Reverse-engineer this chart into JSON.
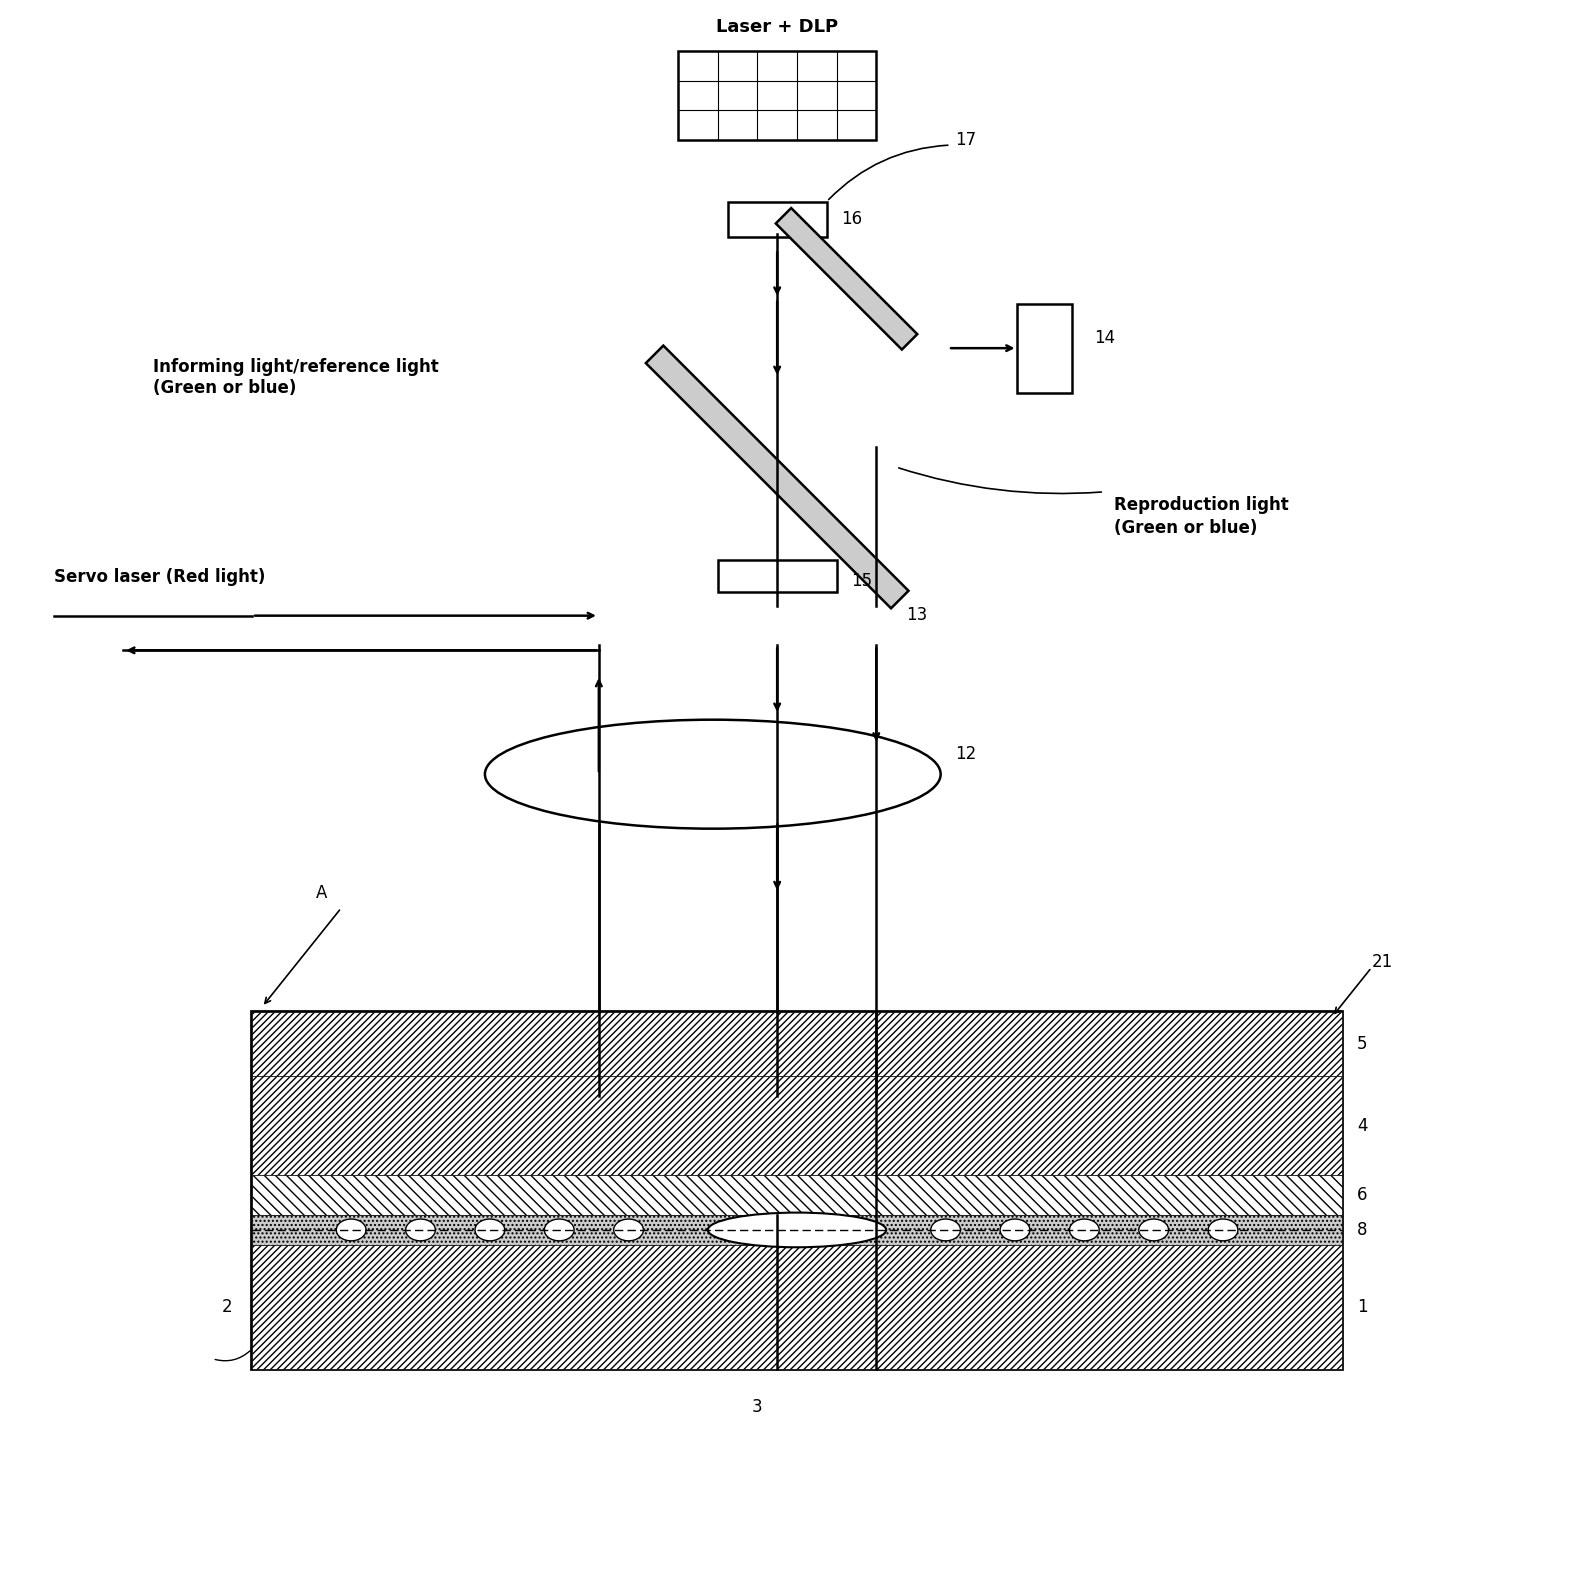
{
  "fig_width": 15.94,
  "fig_height": 15.88,
  "bg_color": "#ffffff",
  "line_color": "#000000",
  "hatch_color": "#000000",
  "labels": {
    "laser_dlp": "Laser + DLP",
    "informing_light": "Informing light/reference light\n(Green or blue)",
    "servo_laser": "Servo laser (Red light)",
    "repro_light": "Reproduction light\n(Green or blue)",
    "num_16": "16",
    "num_17": "17",
    "num_14": "14",
    "num_15": "15",
    "num_13": "13",
    "num_12": "12",
    "num_21": "21",
    "num_A": "A",
    "num_5": "5",
    "num_4": "4",
    "num_6": "6",
    "num_8": "8",
    "num_1": "1",
    "num_2": "2",
    "num_3": "3"
  }
}
